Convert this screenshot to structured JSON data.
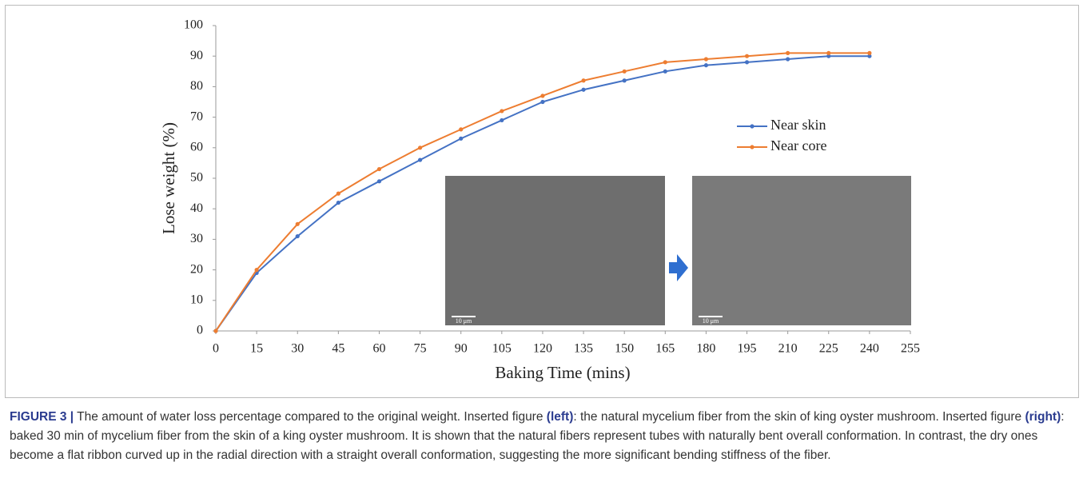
{
  "chart_data": {
    "type": "line",
    "x_label": "Baking Time (mins)",
    "y_label": "Lose weight (%)",
    "x": [
      0,
      15,
      30,
      45,
      60,
      75,
      90,
      105,
      120,
      135,
      150,
      165,
      180,
      195,
      210,
      225,
      240
    ],
    "series": [
      {
        "name": "Near skin",
        "color": "#4472c4",
        "values": [
          0,
          19,
          31,
          42,
          49,
          56,
          63,
          69,
          75,
          79,
          82,
          85,
          87,
          88,
          89,
          90,
          90
        ]
      },
      {
        "name": "Near core",
        "color": "#ed7d31",
        "values": [
          0,
          20,
          35,
          45,
          53,
          60,
          66,
          72,
          77,
          82,
          85,
          88,
          89,
          90,
          91,
          91,
          91
        ]
      }
    ],
    "xlim": [
      0,
      255
    ],
    "xticks": [
      0,
      15,
      30,
      45,
      60,
      75,
      90,
      105,
      120,
      135,
      150,
      165,
      180,
      195,
      210,
      225,
      240,
      255
    ],
    "ylim": [
      0,
      100
    ],
    "yticks": [
      0,
      10,
      20,
      30,
      40,
      50,
      60,
      70,
      80,
      90,
      100
    ],
    "grid": false,
    "inset_labels": [
      "10 μm",
      "10 μm"
    ]
  },
  "caption": {
    "label": "FIGURE 3 |",
    "parts": [
      " The amount of water loss percentage compared to the original weight. Inserted figure ",
      "(left)",
      ": the natural mycelium fiber from the skin of king oyster mushroom. Inserted figure ",
      "(right)",
      ": baked 30 min of mycelium fiber from the skin of a king oyster mushroom. It is shown that the natural fibers represent tubes with naturally bent overall conformation. In contrast, the dry ones become a flat ribbon curved up in the radial direction with a straight overall conformation, suggesting the more significant bending stiffness of the fiber."
    ]
  }
}
